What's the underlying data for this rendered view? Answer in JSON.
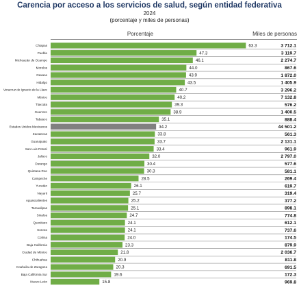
{
  "chart_data": {
    "type": "bar",
    "orientation": "horizontal",
    "title": "Carencia por acceso a los servicios de salud, según entidad federativa",
    "year": "2024",
    "subtitle": "(porcentaje y miles de personas)",
    "percent_header": "Porcentaje",
    "population_header": "Miles de personas",
    "xlim": [
      0,
      70
    ],
    "colors": {
      "bar": "#70ad47",
      "national_bar": "#808080",
      "separator": "#8a8a8a"
    },
    "categories": [
      "Chiapas",
      "Puebla",
      "Michoacán de Ocampo",
      "Morelos",
      "Oaxaca",
      "Hidalgo",
      "Veracruz de Ignacio de la Llave",
      "México",
      "Tlaxcala",
      "Guerrero",
      "Tabasco",
      "Estados Unidos Mexicanos",
      "Zacatecas",
      "Guanajuato",
      "San Luis Potosí",
      "Jalisco",
      "Durango",
      "Quintana Roo",
      "Campeche",
      "Yucatán",
      "Nayarit",
      "Aguascalientes",
      "Tamaulipas",
      "Sinaloa",
      "Querétaro",
      "Sonora",
      "Colima",
      "Baja California",
      "Ciudad de México",
      "Chihuahua",
      "Coahuila de Zaragoza",
      "Baja California Sur",
      "Nuevo León"
    ],
    "values": [
      63.3,
      47.3,
      46.1,
      44.0,
      43.9,
      43.5,
      40.7,
      40.2,
      39.3,
      38.9,
      35.1,
      34.2,
      33.8,
      33.7,
      33.4,
      32.0,
      30.4,
      30.3,
      28.5,
      26.1,
      25.7,
      25.2,
      25.1,
      24.7,
      24.1,
      24.1,
      24.0,
      23.3,
      21.8,
      20.9,
      20.3,
      19.6,
      15.8
    ],
    "value_labels": [
      "63.3",
      "47.3",
      "46.1",
      "44.0",
      "43.9",
      "43.5",
      "40.7",
      "40.2",
      "39.3",
      "38.9",
      "35.1",
      "34.2",
      "33.8",
      "33.7",
      "33.4",
      "32.0",
      "30.4",
      "30.3",
      "28.5",
      "26.1",
      "25.7",
      "25.2",
      "25.1",
      "24.7",
      "24.1",
      "24.1",
      "24.0",
      "23.3",
      "21.8",
      "20.9",
      "20.3",
      "19.6",
      "15.8"
    ],
    "population_thousands": [
      "3 712.1",
      "3 119.7",
      "2 274.7",
      "867.6",
      "1 872.0",
      "1 405.9",
      "3 296.2",
      "7 132.8",
      "576.2",
      "1 400.5",
      "888.4",
      "44 501.2",
      "561.3",
      "2 131.1",
      "961.9",
      "2 797.0",
      "577.6",
      "581.1",
      "269.4",
      "619.7",
      "319.4",
      "377.2",
      "898.1",
      "774.8",
      "612.1",
      "737.6",
      "174.5",
      "879.9",
      "2 036.7",
      "811.8",
      "691.5",
      "172.3",
      "969.8"
    ],
    "highlight_category": "Estados Unidos Mexicanos"
  }
}
